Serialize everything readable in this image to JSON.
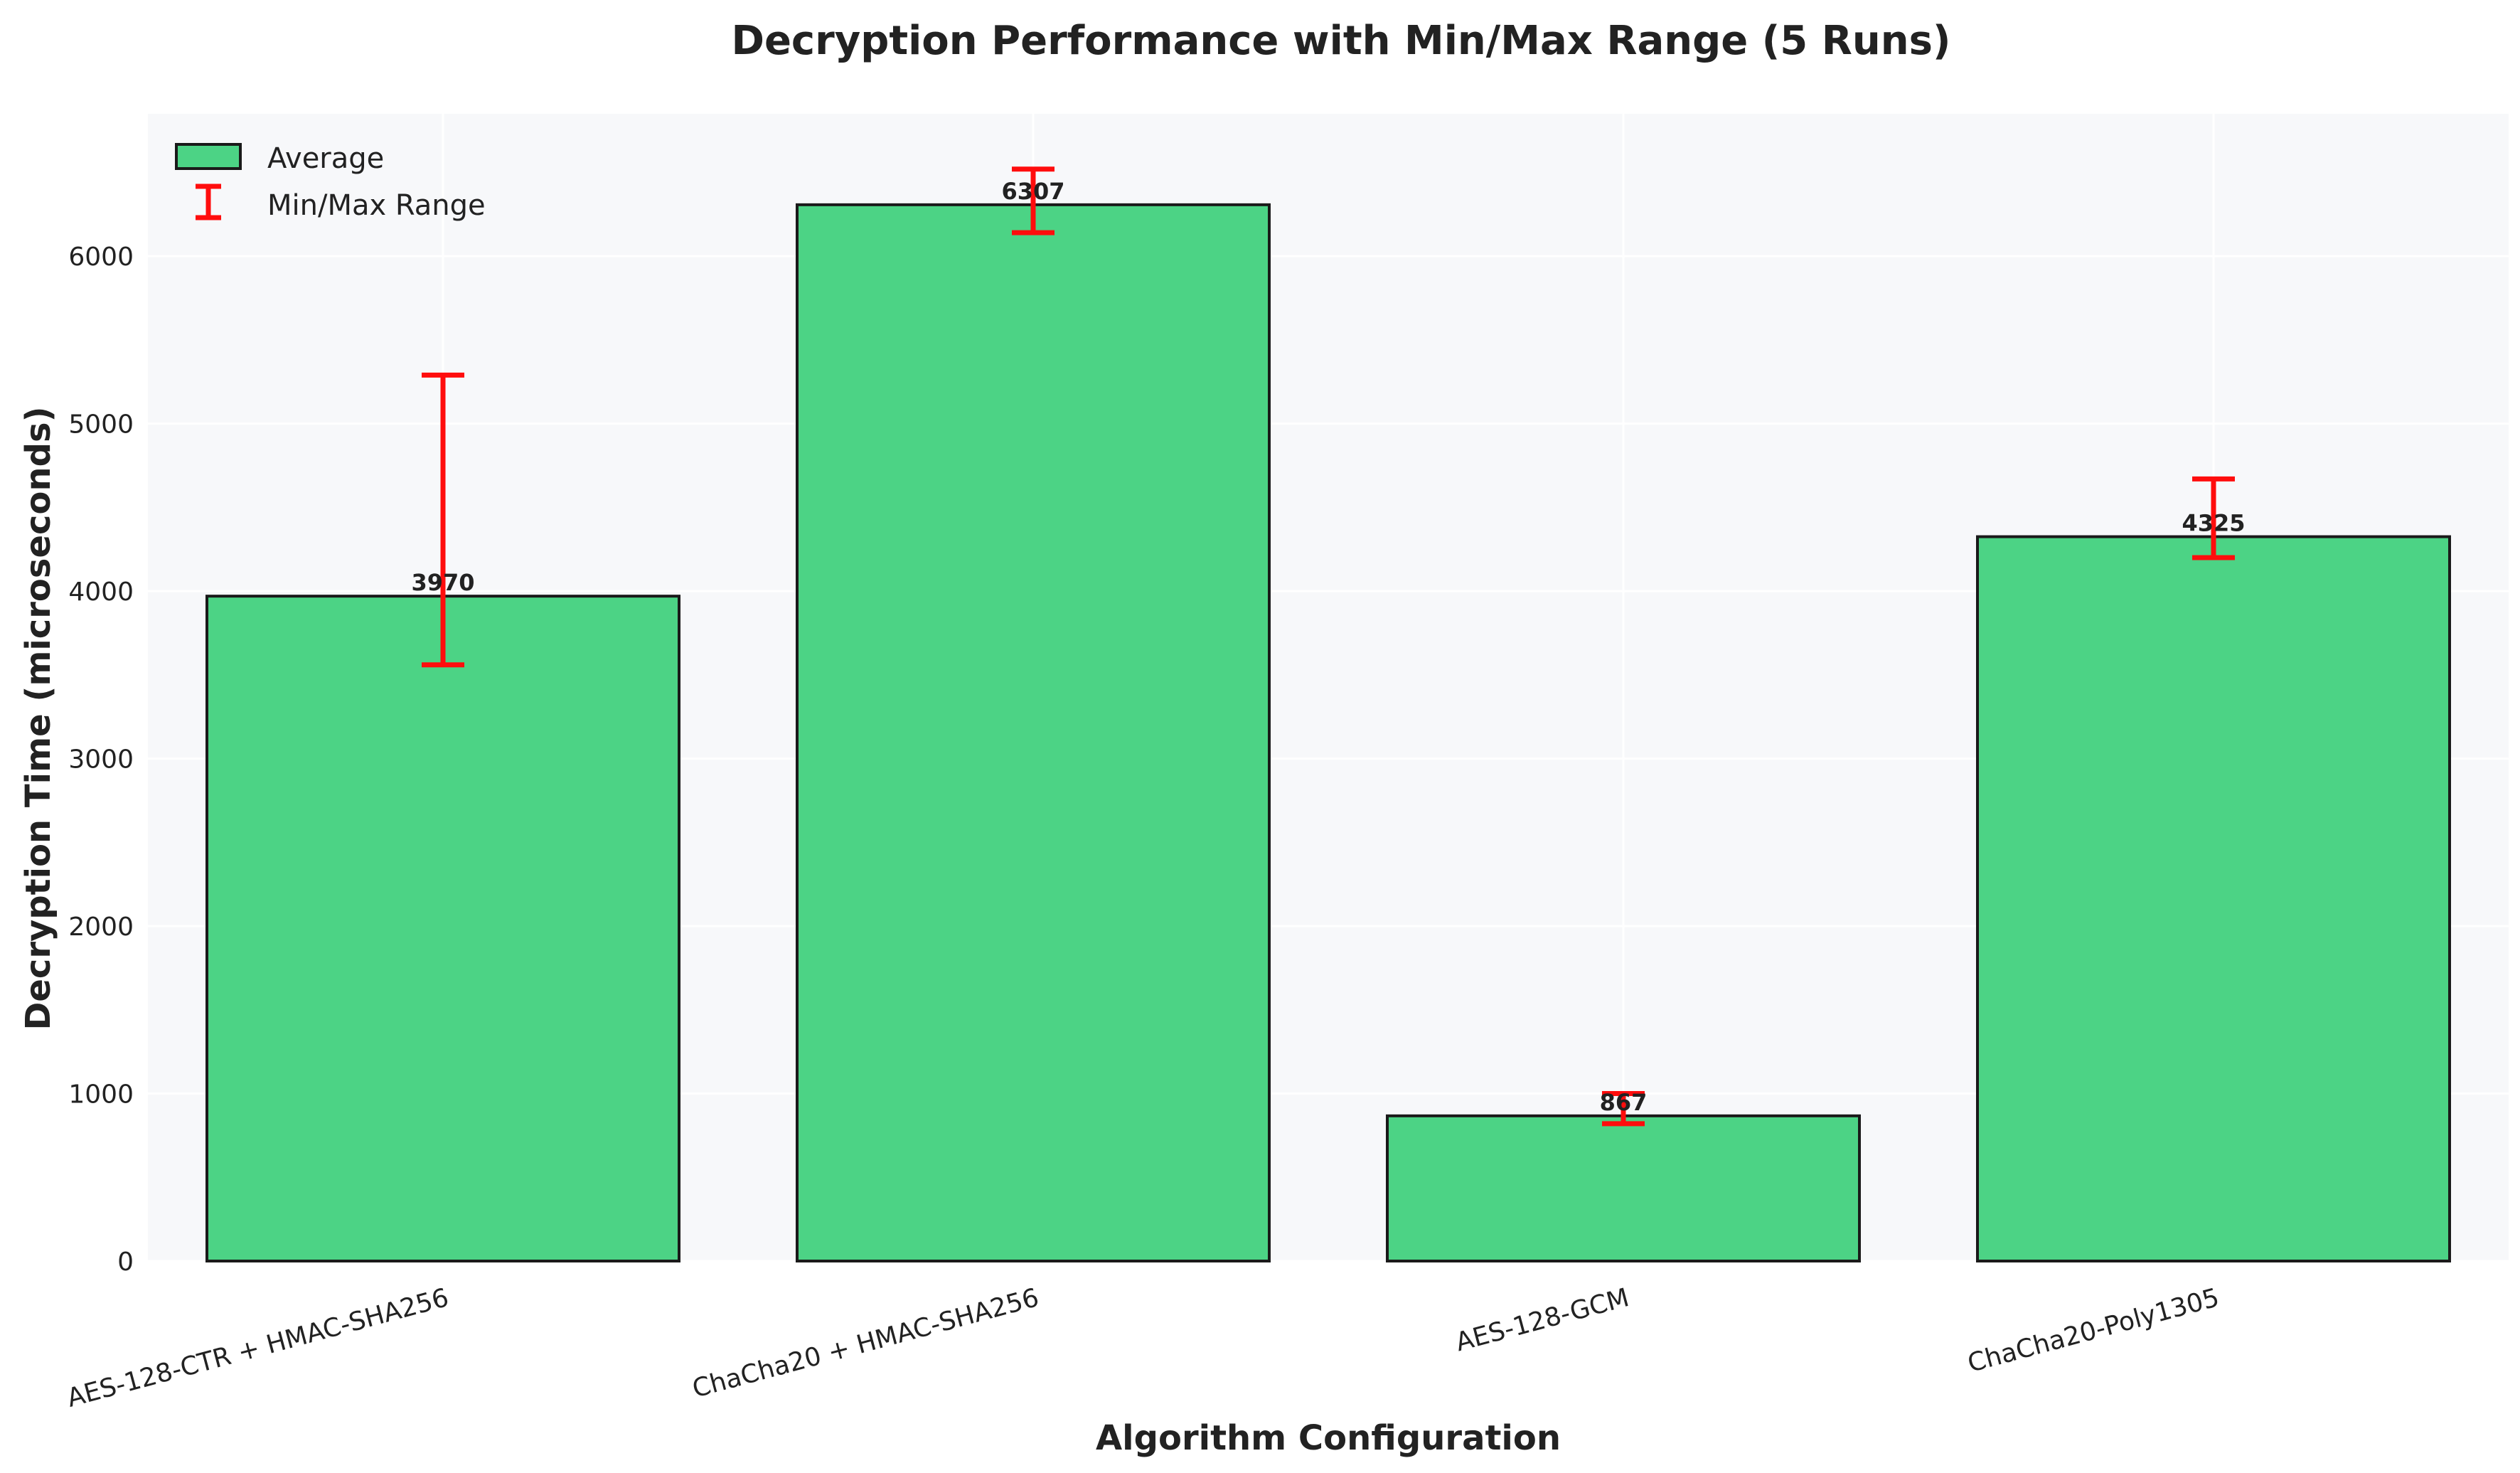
{
  "chart_data": {
    "type": "bar",
    "title": "Decryption Performance with Min/Max Range (5 Runs)",
    "xlabel": "Algorithm Configuration",
    "ylabel": "Decryption Time (microseconds)",
    "categories": [
      "AES-128-CTR + HMAC-SHA256",
      "ChaCha20 + HMAC-SHA256",
      "AES-128-GCM",
      "ChaCha20-Poly1305"
    ],
    "series": [
      {
        "name": "Average",
        "values": [
          3970,
          6307,
          867,
          4325
        ],
        "min": [
          3560,
          6140,
          820,
          4200
        ],
        "max": [
          5290,
          6520,
          1000,
          4670
        ]
      }
    ],
    "data_labels": [
      "3970",
      "6307",
      "867",
      "4325"
    ],
    "error_bar_label": "Min/Max Range",
    "ylim": [
      0,
      6850
    ],
    "yticks": [
      0,
      1000,
      2000,
      3000,
      4000,
      5000,
      6000
    ],
    "grid": true,
    "legend_position": "top-left",
    "colors": {
      "bar_fill": "#4cd385",
      "bar_edge": "#1a1a1a",
      "error_bar": "#ff0d0d",
      "plot_background": "#f7f8fa",
      "grid": "#ffffff"
    }
  }
}
